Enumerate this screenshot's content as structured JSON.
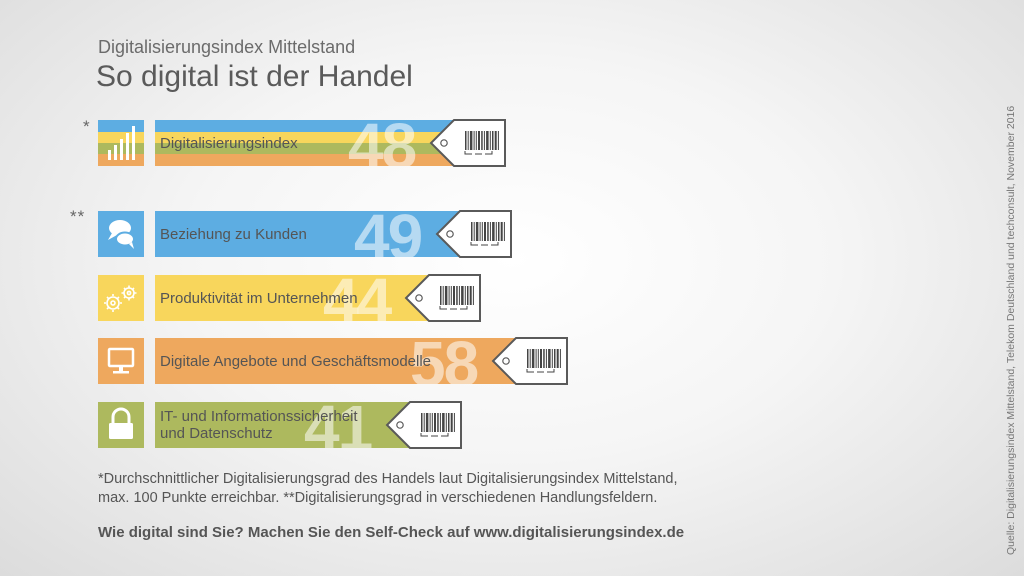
{
  "subtitle": "Digitalisierungsindex Mittelstand",
  "title": "So digital ist der Handel",
  "stars": {
    "single": "*",
    "double": "**"
  },
  "colors": {
    "blue": "#5dade2",
    "yellow": "#f8d65c",
    "orange": "#eea85e",
    "green": "#adb95e",
    "tag_stroke": "#5a5a5a"
  },
  "rows": [
    {
      "label": "Digitalisierungsindex",
      "value": "48",
      "icon": "bar-chart-icon",
      "color": "stripes"
    },
    {
      "label": "Beziehung zu Kunden",
      "value": "49",
      "icon": "speech-bubbles-icon",
      "color": "#5dade2"
    },
    {
      "label": "Produktivität im Unternehmen",
      "value": "44",
      "icon": "gears-icon",
      "color": "#f8d65c"
    },
    {
      "label": "Digitale Angebote und Geschäftsmodelle",
      "value": "58",
      "icon": "monitor-icon",
      "color": "#eea85e"
    },
    {
      "label_line1": "IT- und Informationssicherheit",
      "label_line2": "und Datenschutz",
      "value": "41",
      "icon": "lock-icon",
      "color": "#adb95e"
    }
  ],
  "chart_data": {
    "type": "bar",
    "categories": [
      "Digitalisierungsindex",
      "Beziehung zu Kunden",
      "Produktivität im Unternehmen",
      "Digitale Angebote und Geschäftsmodelle",
      "IT- und Informationssicherheit und Datenschutz"
    ],
    "values": [
      48,
      49,
      44,
      58,
      41
    ],
    "ylim": [
      0,
      100
    ]
  },
  "footnote_line1": "*Durchschnittlicher Digitalisierungsgrad des Handels laut Digitalisierungsindex Mittelstand,",
  "footnote_line2": "max. 100 Punkte erreichbar. **Digitalisierungsgrad in verschiedenen Handlungsfeldern.",
  "cta": "Wie digital sind Sie? Machen Sie den Self-Check auf www.digitalisierungsindex.de",
  "source": "Quelle: Digitalisierungsindex Mittelstand, Telekom Deutschland und techconsult, November 2016"
}
